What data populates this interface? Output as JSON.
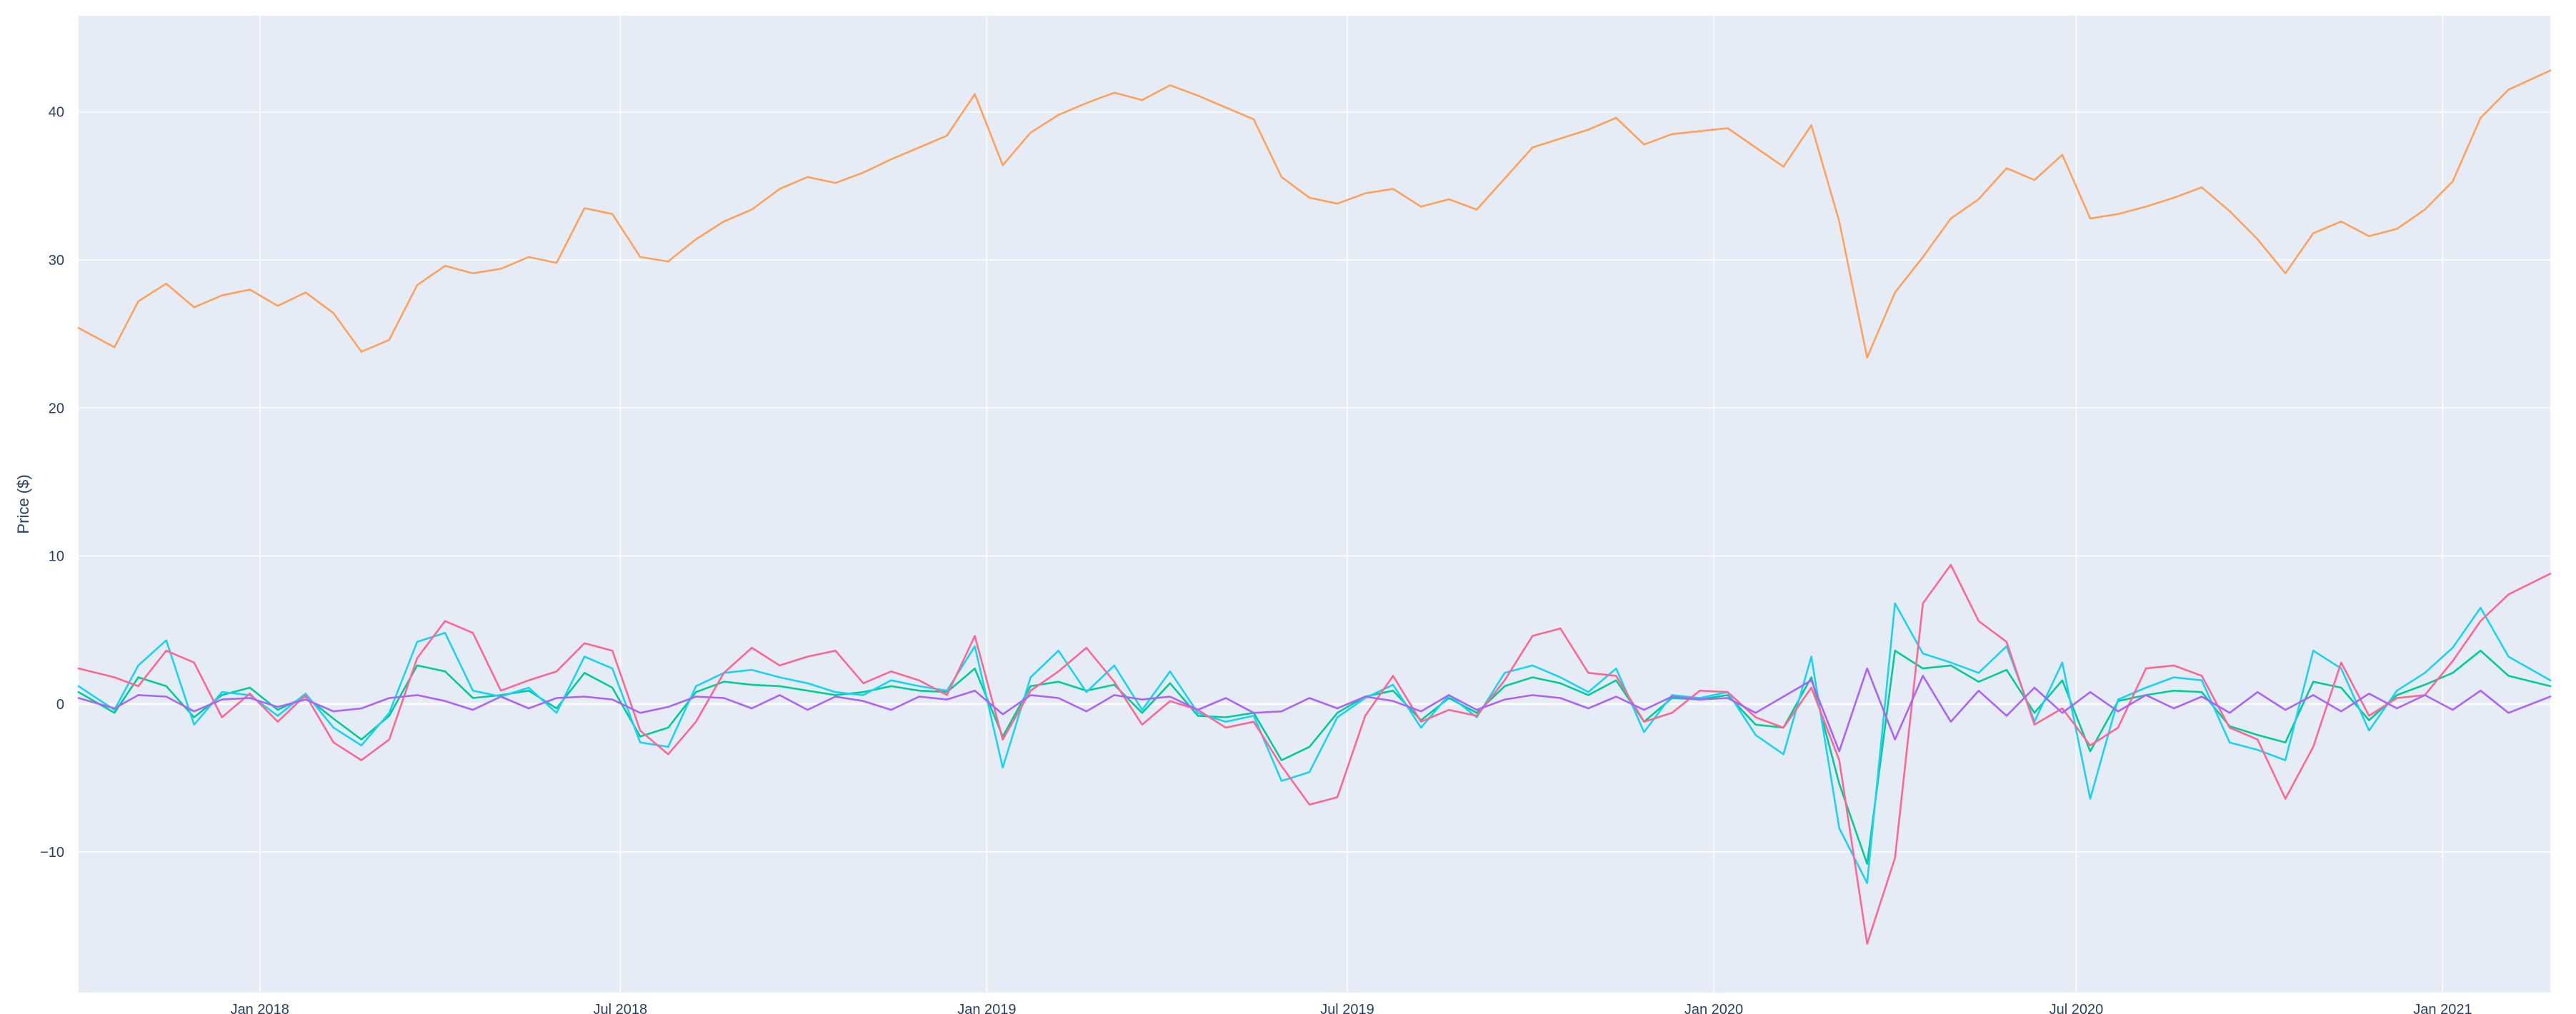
{
  "chart_data": {
    "type": "line",
    "title": "",
    "xlabel": "",
    "ylabel": "Price ($)",
    "xlim": [
      "2017-10-02",
      "2021-02-24"
    ],
    "ylim": [
      -19.5,
      46.5
    ],
    "grid": true,
    "legend": "none",
    "colors": {
      "plot_bg": "#e5ecf6",
      "grid": "#ffffff",
      "tick_text": "#2a3f5f",
      "price": "#FFA15A",
      "change_a": "#00CC96",
      "change_b": "#19D3F3",
      "change_c": "#FF6692",
      "change_d": "#AB63FA"
    },
    "x_ticks": [
      {
        "label": "Jan 2018",
        "date": "2018-01-01"
      },
      {
        "label": "Jul 2018",
        "date": "2018-07-01"
      },
      {
        "label": "Jan 2019",
        "date": "2019-01-01"
      },
      {
        "label": "Jul 2019",
        "date": "2019-07-01"
      },
      {
        "label": "Jan 2020",
        "date": "2020-01-01"
      },
      {
        "label": "Jul 2020",
        "date": "2020-07-01"
      },
      {
        "label": "Jan 2021",
        "date": "2021-01-01"
      }
    ],
    "y_ticks": [
      {
        "label": "−10",
        "value": -10
      },
      {
        "label": "0",
        "value": 0
      },
      {
        "label": "10",
        "value": 10
      },
      {
        "label": "20",
        "value": 20
      },
      {
        "label": "30",
        "value": 30
      },
      {
        "label": "40",
        "value": 40
      }
    ],
    "series": [
      {
        "color": "#FFA15A",
        "x": [
          "2017-10-02",
          "2017-10-20",
          "2017-11-01",
          "2017-11-15",
          "2017-11-29",
          "2017-12-13",
          "2017-12-27",
          "2018-01-10",
          "2018-01-24",
          "2018-02-07",
          "2018-02-21",
          "2018-03-07",
          "2018-03-21",
          "2018-04-04",
          "2018-04-18",
          "2018-05-02",
          "2018-05-16",
          "2018-05-30",
          "2018-06-13",
          "2018-06-27",
          "2018-07-11",
          "2018-07-25",
          "2018-08-08",
          "2018-08-22",
          "2018-09-05",
          "2018-09-19",
          "2018-10-03",
          "2018-10-17",
          "2018-10-31",
          "2018-11-14",
          "2018-11-28",
          "2018-12-12",
          "2018-12-26",
          "2019-01-09",
          "2019-01-23",
          "2019-02-06",
          "2019-02-20",
          "2019-03-06",
          "2019-03-20",
          "2019-04-03",
          "2019-04-17",
          "2019-05-01",
          "2019-05-15",
          "2019-05-29",
          "2019-06-12",
          "2019-06-26",
          "2019-07-10",
          "2019-07-24",
          "2019-08-07",
          "2019-08-21",
          "2019-09-04",
          "2019-09-18",
          "2019-10-02",
          "2019-10-16",
          "2019-10-30",
          "2019-11-13",
          "2019-11-27",
          "2019-12-11",
          "2019-12-25",
          "2020-01-08",
          "2020-01-22",
          "2020-02-05",
          "2020-02-19",
          "2020-03-04",
          "2020-03-18",
          "2020-04-01",
          "2020-04-15",
          "2020-04-29",
          "2020-05-13",
          "2020-05-27",
          "2020-06-10",
          "2020-06-24",
          "2020-07-08",
          "2020-07-22",
          "2020-08-05",
          "2020-08-19",
          "2020-09-02",
          "2020-09-16",
          "2020-09-30",
          "2020-10-14",
          "2020-10-28",
          "2020-11-11",
          "2020-11-25",
          "2020-12-09",
          "2020-12-23",
          "2021-01-06",
          "2021-01-20",
          "2021-02-03",
          "2021-02-24"
        ],
        "values": [
          25.4,
          24.1,
          27.2,
          28.4,
          26.8,
          27.6,
          28.0,
          26.9,
          27.8,
          26.4,
          23.8,
          24.6,
          28.3,
          29.6,
          29.1,
          29.4,
          30.2,
          29.8,
          33.5,
          33.1,
          30.2,
          29.9,
          31.4,
          32.6,
          33.4,
          34.8,
          35.6,
          35.2,
          35.9,
          36.8,
          37.6,
          38.4,
          41.2,
          36.4,
          38.6,
          39.8,
          40.6,
          41.3,
          40.8,
          41.8,
          41.1,
          40.3,
          39.5,
          35.6,
          34.2,
          33.8,
          34.5,
          34.8,
          33.6,
          34.1,
          33.4,
          35.5,
          37.6,
          38.2,
          38.8,
          39.6,
          37.8,
          38.5,
          38.7,
          38.9,
          37.6,
          36.3,
          39.1,
          32.6,
          23.4,
          27.8,
          30.2,
          32.8,
          34.1,
          36.2,
          35.4,
          37.1,
          32.8,
          33.1,
          33.6,
          34.2,
          34.9,
          33.3,
          31.4,
          29.1,
          31.8,
          32.6,
          31.6,
          32.1,
          33.4,
          35.3,
          39.6,
          41.5,
          42.8
        ]
      },
      {
        "color": "#00CC96",
        "x": [
          "2017-10-02",
          "2017-10-20",
          "2017-11-01",
          "2017-11-15",
          "2017-11-29",
          "2017-12-13",
          "2017-12-27",
          "2018-01-10",
          "2018-01-24",
          "2018-02-07",
          "2018-02-21",
          "2018-03-07",
          "2018-03-21",
          "2018-04-04",
          "2018-04-18",
          "2018-05-02",
          "2018-05-16",
          "2018-05-30",
          "2018-06-13",
          "2018-06-27",
          "2018-07-11",
          "2018-07-25",
          "2018-08-08",
          "2018-08-22",
          "2018-09-05",
          "2018-09-19",
          "2018-10-03",
          "2018-10-17",
          "2018-10-31",
          "2018-11-14",
          "2018-11-28",
          "2018-12-12",
          "2018-12-26",
          "2019-01-09",
          "2019-01-23",
          "2019-02-06",
          "2019-02-20",
          "2019-03-06",
          "2019-03-20",
          "2019-04-03",
          "2019-04-17",
          "2019-05-01",
          "2019-05-15",
          "2019-05-29",
          "2019-06-12",
          "2019-06-26",
          "2019-07-10",
          "2019-07-24",
          "2019-08-07",
          "2019-08-21",
          "2019-09-04",
          "2019-09-18",
          "2019-10-02",
          "2019-10-16",
          "2019-10-30",
          "2019-11-13",
          "2019-11-27",
          "2019-12-11",
          "2019-12-25",
          "2020-01-08",
          "2020-01-22",
          "2020-02-05",
          "2020-02-19",
          "2020-03-04",
          "2020-03-18",
          "2020-04-01",
          "2020-04-15",
          "2020-04-29",
          "2020-05-13",
          "2020-05-27",
          "2020-06-10",
          "2020-06-24",
          "2020-07-08",
          "2020-07-22",
          "2020-08-05",
          "2020-08-19",
          "2020-09-02",
          "2020-09-16",
          "2020-09-30",
          "2020-10-14",
          "2020-10-28",
          "2020-11-11",
          "2020-11-25",
          "2020-12-09",
          "2020-12-23",
          "2021-01-06",
          "2021-01-20",
          "2021-02-03",
          "2021-02-24"
        ],
        "values": [
          0.8,
          -0.6,
          1.8,
          1.2,
          -0.9,
          0.6,
          1.1,
          -0.4,
          0.5,
          -1.0,
          -2.4,
          -0.8,
          2.6,
          2.2,
          0.4,
          0.6,
          0.9,
          -0.3,
          2.1,
          1.1,
          -2.2,
          -1.6,
          0.8,
          1.5,
          1.3,
          1.2,
          0.9,
          0.6,
          0.8,
          1.2,
          0.9,
          0.8,
          2.4,
          -2.2,
          1.2,
          1.5,
          0.9,
          1.3,
          -0.6,
          1.4,
          -0.8,
          -0.9,
          -0.6,
          -3.8,
          -2.9,
          -0.6,
          0.5,
          0.9,
          -1.1,
          0.4,
          -0.6,
          1.2,
          1.8,
          1.4,
          0.6,
          1.6,
          -1.2,
          0.4,
          0.3,
          0.6,
          -1.4,
          -1.6,
          1.8,
          -5.4,
          -10.8,
          3.6,
          2.4,
          2.6,
          1.5,
          2.3,
          -0.6,
          1.6,
          -3.2,
          0.2,
          0.6,
          0.9,
          0.8,
          -1.5,
          -2.1,
          -2.6,
          1.5,
          1.1,
          -1.1,
          0.6,
          1.3,
          2.1,
          3.6,
          1.9,
          1.2
        ]
      },
      {
        "color": "#19D3F3",
        "x": [
          "2017-10-02",
          "2017-10-20",
          "2017-11-01",
          "2017-11-15",
          "2017-11-29",
          "2017-12-13",
          "2017-12-27",
          "2018-01-10",
          "2018-01-24",
          "2018-02-07",
          "2018-02-21",
          "2018-03-07",
          "2018-03-21",
          "2018-04-04",
          "2018-04-18",
          "2018-05-02",
          "2018-05-16",
          "2018-05-30",
          "2018-06-13",
          "2018-06-27",
          "2018-07-11",
          "2018-07-25",
          "2018-08-08",
          "2018-08-22",
          "2018-09-05",
          "2018-09-19",
          "2018-10-03",
          "2018-10-17",
          "2018-10-31",
          "2018-11-14",
          "2018-11-28",
          "2018-12-12",
          "2018-12-26",
          "2019-01-09",
          "2019-01-23",
          "2019-02-06",
          "2019-02-20",
          "2019-03-06",
          "2019-03-20",
          "2019-04-03",
          "2019-04-17",
          "2019-05-01",
          "2019-05-15",
          "2019-05-29",
          "2019-06-12",
          "2019-06-26",
          "2019-07-10",
          "2019-07-24",
          "2019-08-07",
          "2019-08-21",
          "2019-09-04",
          "2019-09-18",
          "2019-10-02",
          "2019-10-16",
          "2019-10-30",
          "2019-11-13",
          "2019-11-27",
          "2019-12-11",
          "2019-12-25",
          "2020-01-08",
          "2020-01-22",
          "2020-02-05",
          "2020-02-19",
          "2020-03-04",
          "2020-03-18",
          "2020-04-01",
          "2020-04-15",
          "2020-04-29",
          "2020-05-13",
          "2020-05-27",
          "2020-06-10",
          "2020-06-24",
          "2020-07-08",
          "2020-07-22",
          "2020-08-05",
          "2020-08-19",
          "2020-09-02",
          "2020-09-16",
          "2020-09-30",
          "2020-10-14",
          "2020-10-28",
          "2020-11-11",
          "2020-11-25",
          "2020-12-09",
          "2020-12-23",
          "2021-01-06",
          "2021-01-20",
          "2021-02-03",
          "2021-02-24"
        ],
        "values": [
          1.2,
          -0.4,
          2.6,
          4.3,
          -1.4,
          0.8,
          0.6,
          -0.8,
          0.7,
          -1.6,
          -2.8,
          -0.6,
          4.2,
          4.8,
          0.9,
          0.5,
          1.1,
          -0.6,
          3.2,
          2.4,
          -2.6,
          -2.9,
          1.2,
          2.1,
          2.3,
          1.8,
          1.4,
          0.8,
          0.6,
          1.6,
          1.2,
          0.9,
          3.9,
          -4.3,
          1.8,
          3.6,
          0.8,
          2.6,
          -0.4,
          2.2,
          -0.6,
          -1.2,
          -0.8,
          -5.2,
          -4.6,
          -0.9,
          0.4,
          1.3,
          -1.6,
          0.6,
          -0.9,
          2.1,
          2.6,
          1.8,
          0.8,
          2.4,
          -1.9,
          0.6,
          0.4,
          0.8,
          -2.1,
          -3.4,
          3.2,
          -8.4,
          -12.1,
          6.8,
          3.4,
          2.8,
          2.1,
          3.9,
          -1.2,
          2.8,
          -6.4,
          0.3,
          1.1,
          1.8,
          1.6,
          -2.6,
          -3.1,
          -3.8,
          3.6,
          2.4,
          -1.8,
          0.9,
          2.1,
          3.8,
          6.5,
          3.2,
          1.6
        ]
      },
      {
        "color": "#FF6692",
        "x": [
          "2017-10-02",
          "2017-10-20",
          "2017-11-01",
          "2017-11-15",
          "2017-11-29",
          "2017-12-13",
          "2017-12-27",
          "2018-01-10",
          "2018-01-24",
          "2018-02-07",
          "2018-02-21",
          "2018-03-07",
          "2018-03-21",
          "2018-04-04",
          "2018-04-18",
          "2018-05-02",
          "2018-05-16",
          "2018-05-30",
          "2018-06-13",
          "2018-06-27",
          "2018-07-11",
          "2018-07-25",
          "2018-08-08",
          "2018-08-22",
          "2018-09-05",
          "2018-09-19",
          "2018-10-03",
          "2018-10-17",
          "2018-10-31",
          "2018-11-14",
          "2018-11-28",
          "2018-12-12",
          "2018-12-26",
          "2019-01-09",
          "2019-01-23",
          "2019-02-06",
          "2019-02-20",
          "2019-03-06",
          "2019-03-20",
          "2019-04-03",
          "2019-04-17",
          "2019-05-01",
          "2019-05-15",
          "2019-05-29",
          "2019-06-12",
          "2019-06-26",
          "2019-07-10",
          "2019-07-24",
          "2019-08-07",
          "2019-08-21",
          "2019-09-04",
          "2019-09-18",
          "2019-10-02",
          "2019-10-16",
          "2019-10-30",
          "2019-11-13",
          "2019-11-27",
          "2019-12-11",
          "2019-12-25",
          "2020-01-08",
          "2020-01-22",
          "2020-02-05",
          "2020-02-19",
          "2020-03-04",
          "2020-03-18",
          "2020-04-01",
          "2020-04-15",
          "2020-04-29",
          "2020-05-13",
          "2020-05-27",
          "2020-06-10",
          "2020-06-24",
          "2020-07-08",
          "2020-07-22",
          "2020-08-05",
          "2020-08-19",
          "2020-09-02",
          "2020-09-16",
          "2020-09-30",
          "2020-10-14",
          "2020-10-28",
          "2020-11-11",
          "2020-11-25",
          "2020-12-09",
          "2020-12-23",
          "2021-01-06",
          "2021-01-20",
          "2021-02-03",
          "2021-02-24"
        ],
        "values": [
          2.4,
          1.8,
          1.2,
          3.6,
          2.8,
          -0.9,
          0.7,
          -1.2,
          0.6,
          -2.6,
          -3.8,
          -2.4,
          3.1,
          5.6,
          4.8,
          0.9,
          1.6,
          2.2,
          4.1,
          3.6,
          -1.8,
          -3.4,
          -1.2,
          2.1,
          3.8,
          2.6,
          3.2,
          3.6,
          1.4,
          2.2,
          1.6,
          0.6,
          4.6,
          -2.4,
          0.9,
          2.2,
          3.8,
          1.5,
          -1.4,
          0.2,
          -0.4,
          -1.6,
          -1.2,
          -4.2,
          -6.8,
          -6.3,
          -0.8,
          1.9,
          -1.2,
          -0.4,
          -0.8,
          1.6,
          4.6,
          5.1,
          2.1,
          1.9,
          -1.2,
          -0.6,
          0.9,
          0.8,
          -0.9,
          -1.6,
          1.1,
          -3.8,
          -16.2,
          -10.4,
          6.8,
          9.4,
          5.6,
          4.2,
          -1.4,
          -0.3,
          -2.8,
          -1.6,
          2.4,
          2.6,
          1.9,
          -1.6,
          -2.4,
          -6.4,
          -2.9,
          2.8,
          -0.8,
          0.4,
          0.6,
          2.9,
          5.6,
          7.4,
          8.8
        ]
      },
      {
        "color": "#AB63FA",
        "x": [
          "2017-10-02",
          "2017-10-20",
          "2017-11-01",
          "2017-11-15",
          "2017-11-29",
          "2017-12-13",
          "2017-12-27",
          "2018-01-10",
          "2018-01-24",
          "2018-02-07",
          "2018-02-21",
          "2018-03-07",
          "2018-03-21",
          "2018-04-04",
          "2018-04-18",
          "2018-05-02",
          "2018-05-16",
          "2018-05-30",
          "2018-06-13",
          "2018-06-27",
          "2018-07-11",
          "2018-07-25",
          "2018-08-08",
          "2018-08-22",
          "2018-09-05",
          "2018-09-19",
          "2018-10-03",
          "2018-10-17",
          "2018-10-31",
          "2018-11-14",
          "2018-11-28",
          "2018-12-12",
          "2018-12-26",
          "2019-01-09",
          "2019-01-23",
          "2019-02-06",
          "2019-02-20",
          "2019-03-06",
          "2019-03-20",
          "2019-04-03",
          "2019-04-17",
          "2019-05-01",
          "2019-05-15",
          "2019-05-29",
          "2019-06-12",
          "2019-06-26",
          "2019-07-10",
          "2019-07-24",
          "2019-08-07",
          "2019-08-21",
          "2019-09-04",
          "2019-09-18",
          "2019-10-02",
          "2019-10-16",
          "2019-10-30",
          "2019-11-13",
          "2019-11-27",
          "2019-12-11",
          "2019-12-25",
          "2020-01-08",
          "2020-01-22",
          "2020-02-05",
          "2020-02-19",
          "2020-03-04",
          "2020-03-18",
          "2020-04-01",
          "2020-04-15",
          "2020-04-29",
          "2020-05-13",
          "2020-05-27",
          "2020-06-10",
          "2020-06-24",
          "2020-07-08",
          "2020-07-22",
          "2020-08-05",
          "2020-08-19",
          "2020-09-02",
          "2020-09-16",
          "2020-09-30",
          "2020-10-14",
          "2020-10-28",
          "2020-11-11",
          "2020-11-25",
          "2020-12-09",
          "2020-12-23",
          "2021-01-06",
          "2021-01-20",
          "2021-02-03",
          "2021-02-24"
        ],
        "values": [
          0.4,
          -0.3,
          0.6,
          0.5,
          -0.5,
          0.3,
          0.4,
          -0.2,
          0.3,
          -0.5,
          -0.3,
          0.4,
          0.6,
          0.2,
          -0.4,
          0.5,
          -0.3,
          0.4,
          0.5,
          0.3,
          -0.6,
          -0.2,
          0.5,
          0.4,
          -0.3,
          0.6,
          -0.4,
          0.5,
          0.2,
          -0.4,
          0.5,
          0.3,
          0.9,
          -0.7,
          0.6,
          0.4,
          -0.5,
          0.6,
          0.3,
          0.5,
          -0.4,
          0.4,
          -0.6,
          -0.5,
          0.4,
          -0.3,
          0.5,
          0.2,
          -0.5,
          0.6,
          -0.4,
          0.3,
          0.6,
          0.4,
          -0.3,
          0.5,
          -0.4,
          0.5,
          0.3,
          0.4,
          -0.6,
          0.5,
          1.6,
          -3.2,
          2.4,
          -2.4,
          1.9,
          -1.2,
          0.9,
          -0.8,
          1.1,
          -0.6,
          0.8,
          -0.5,
          0.6,
          -0.3,
          0.5,
          -0.6,
          0.8,
          -0.4,
          0.6,
          -0.5,
          0.7,
          -0.3,
          0.6,
          -0.4,
          0.9,
          -0.6,
          0.5
        ]
      }
    ]
  }
}
